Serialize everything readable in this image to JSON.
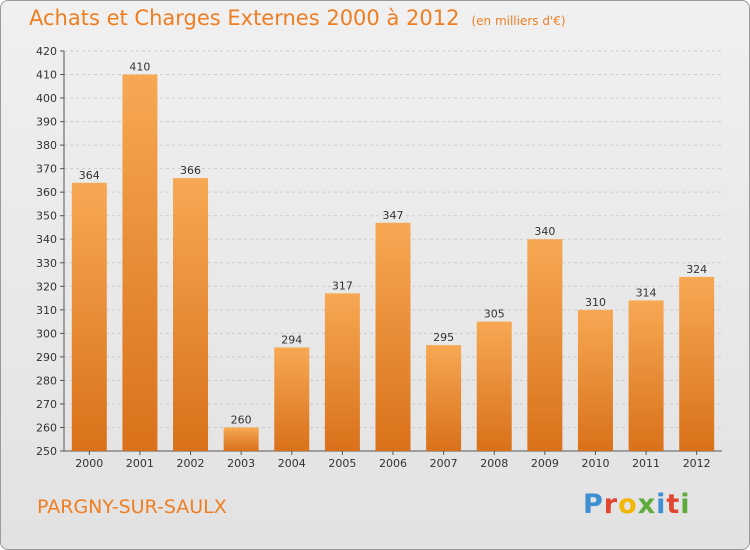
{
  "title": "Achats et Charges Externes 2000 à 2012",
  "subtitle": "(en milliers d'€)",
  "location": "PARGNY-SUR-SAULX",
  "brand": "Proxiti",
  "colors": {
    "accent": "#ef7e22",
    "bar_light": "#f7a853",
    "bar_dark": "#d9711a",
    "grid": "#cccccc",
    "axis": "#555555"
  },
  "chart_data": {
    "type": "bar",
    "categories": [
      "2000",
      "2001",
      "2002",
      "2003",
      "2004",
      "2005",
      "2006",
      "2007",
      "2008",
      "2009",
      "2010",
      "2011",
      "2012"
    ],
    "values": [
      364,
      410,
      366,
      260,
      294,
      317,
      347,
      295,
      305,
      340,
      310,
      314,
      324
    ],
    "ylim": [
      250,
      420
    ],
    "yticks": [
      250,
      260,
      270,
      280,
      290,
      300,
      310,
      320,
      330,
      340,
      350,
      360,
      370,
      380,
      390,
      400,
      410,
      420
    ],
    "grid": true,
    "legend": "none",
    "data_labels": true
  }
}
